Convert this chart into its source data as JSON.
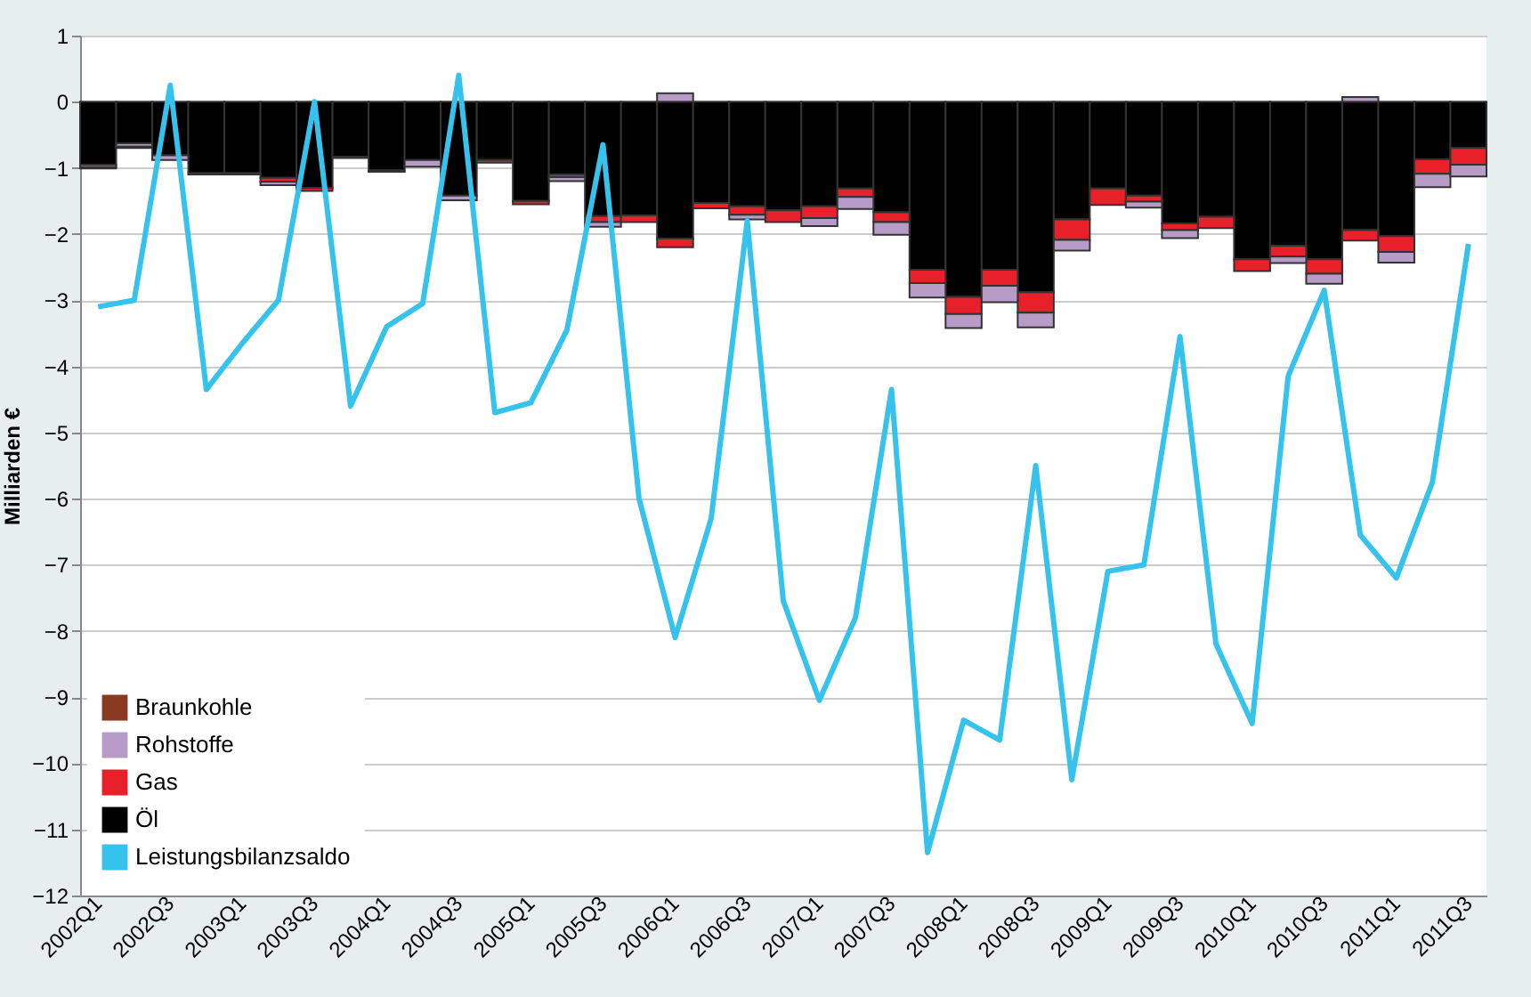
{
  "chart_data": {
    "type": "bar",
    "stacked": true,
    "ylabel": "Milliarden €",
    "categories": [
      "2002Q1",
      null,
      "2002Q3",
      null,
      "2003Q1",
      null,
      "2003Q3",
      null,
      "2004Q1",
      null,
      "2004Q3",
      null,
      "2005Q1",
      null,
      "2005Q3",
      null,
      "2006Q1",
      null,
      "2006Q3",
      null,
      "2007Q1",
      null,
      "2007Q3",
      null,
      "2008Q1",
      null,
      "2008Q3",
      null,
      "2009Q1",
      null,
      "2009Q3",
      null,
      "2010Q1",
      null,
      "2010Q3",
      null,
      "2011Q1",
      null,
      "2011Q3"
    ],
    "series": [
      {
        "name": "Öl",
        "color": "#000000",
        "values": [
          -0.95,
          -0.63,
          -0.81,
          -1.08,
          -1.08,
          -1.15,
          -1.3,
          -0.83,
          -1.04,
          -0.88,
          -1.42,
          -0.88,
          -1.5,
          -1.1,
          -1.73,
          -1.72,
          -2.07,
          -1.53,
          -1.58,
          -1.64,
          -1.58,
          -1.31,
          -1.67,
          -2.54,
          -2.95,
          -2.54,
          -2.88,
          -1.78,
          -1.31,
          -1.42,
          -1.84,
          -1.74,
          -2.38,
          -2.18,
          -2.38,
          -1.94,
          -2.03,
          -0.87,
          -0.7
        ]
      },
      {
        "name": "Gas",
        "color": "#e8202a",
        "values": [
          0,
          0,
          null,
          0,
          0,
          -0.06,
          -0.05,
          0,
          0,
          null,
          null,
          -0.04,
          -0.05,
          -0.04,
          -0.09,
          -0.1,
          -0.13,
          -0.08,
          -0.13,
          -0.18,
          -0.18,
          -0.13,
          -0.15,
          -0.2,
          -0.26,
          -0.24,
          -0.31,
          -0.31,
          -0.25,
          -0.09,
          -0.1,
          -0.17,
          -0.18,
          -0.16,
          -0.22,
          -0.16,
          -0.24,
          -0.22,
          -0.25
        ]
      },
      {
        "name": "Rohstoffe",
        "color": "#b89cc8",
        "values": [
          -0.04,
          -0.05,
          -0.07,
          0,
          0,
          -0.05,
          0,
          null,
          null,
          -0.1,
          -0.07,
          0,
          0,
          -0.06,
          -0.07,
          0,
          0.13,
          0,
          -0.07,
          0,
          -0.12,
          -0.18,
          -0.19,
          -0.22,
          -0.21,
          -0.25,
          -0.22,
          -0.16,
          0,
          -0.09,
          -0.12,
          0,
          0,
          -0.1,
          -0.15,
          0.07,
          -0.16,
          -0.2,
          -0.18
        ]
      },
      {
        "name": "Braunkohle",
        "color": "#8b3a22",
        "values": [
          -0.02,
          -0.02,
          0,
          -0.02,
          -0.02,
          0,
          0,
          -0.02,
          -0.02,
          0,
          0,
          0,
          0,
          0,
          0,
          0,
          0,
          0,
          0,
          0,
          0,
          0,
          0,
          0,
          0,
          0,
          0,
          0,
          0,
          0,
          0,
          0,
          0,
          0,
          0,
          0,
          0,
          0,
          0
        ]
      },
      {
        "name": "Leistungsbilanzsaldo",
        "type": "line",
        "color": "#35c3ee",
        "values": [
          -3.1,
          -3.0,
          0.25,
          -4.35,
          -3.65,
          -3.0,
          0.0,
          -4.6,
          -3.4,
          -3.05,
          0.4,
          -4.7,
          -4.55,
          -3.45,
          -0.65,
          -6.0,
          -8.1,
          -6.3,
          -1.8,
          -7.55,
          -9.05,
          -7.8,
          -4.35,
          -11.35,
          -9.35,
          -9.65,
          -5.5,
          -10.25,
          -7.1,
          -7.0,
          -3.55,
          -8.2,
          -9.4,
          -4.15,
          -2.85,
          -6.55,
          -7.2,
          -5.75,
          -2.15
        ]
      }
    ],
    "ylim": [
      -12,
      1
    ],
    "yticks": [
      -12,
      -11,
      -10,
      -9,
      -8,
      -7,
      -6,
      -5,
      -4,
      -3,
      -2,
      -1,
      0,
      1
    ],
    "grid": "y",
    "legend": "bottom left"
  }
}
